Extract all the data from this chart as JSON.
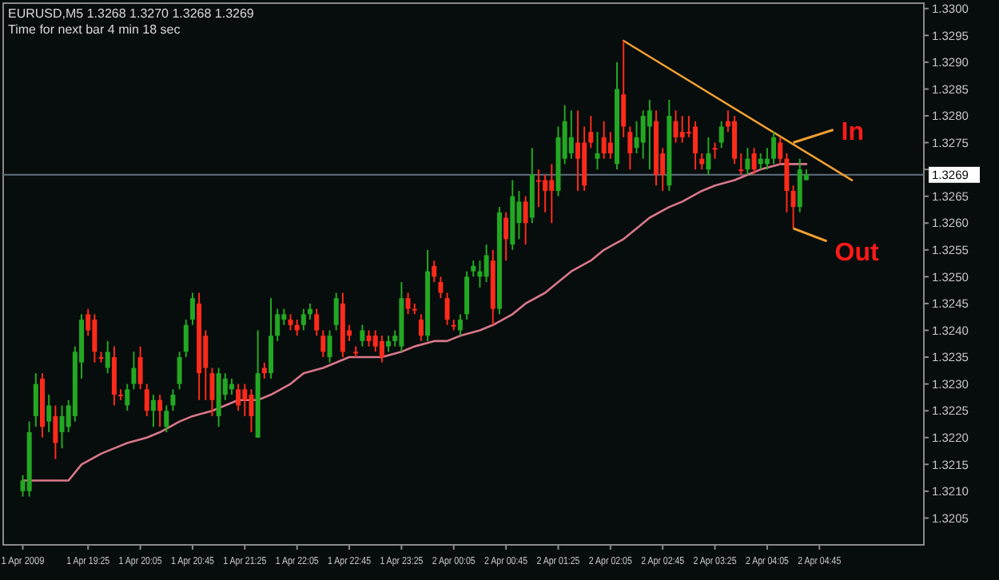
{
  "chart_data": {
    "type": "candlestick",
    "title": "EURUSD,M5  1.3268 1.3270 1.3268 1.3269",
    "subtitle": "Time for next bar 4 min 18 sec",
    "x": [
      "2009-04-01T18:35",
      "2009-04-01T18:40",
      "2009-04-01T18:45",
      "2009-04-01T18:50",
      "2009-04-01T18:55",
      "2009-04-01T19:00",
      "2009-04-01T19:05",
      "2009-04-01T19:10",
      "2009-04-01T19:15",
      "2009-04-01T19:20",
      "2009-04-01T19:25",
      "2009-04-01T19:30",
      "2009-04-01T19:35",
      "2009-04-01T19:40",
      "2009-04-01T19:45",
      "2009-04-01T19:50",
      "2009-04-01T19:55",
      "2009-04-01T20:00",
      "2009-04-01T20:05",
      "2009-04-01T20:10",
      "2009-04-01T20:15",
      "2009-04-01T20:20",
      "2009-04-01T20:25",
      "2009-04-01T20:30",
      "2009-04-01T20:35",
      "2009-04-01T20:40",
      "2009-04-01T20:45",
      "2009-04-01T20:50",
      "2009-04-01T20:55",
      "2009-04-01T21:00",
      "2009-04-01T21:05",
      "2009-04-01T21:10",
      "2009-04-01T21:15",
      "2009-04-01T21:20",
      "2009-04-01T21:25",
      "2009-04-01T21:30",
      "2009-04-01T21:35",
      "2009-04-01T21:40",
      "2009-04-01T21:45",
      "2009-04-01T21:50",
      "2009-04-01T21:55",
      "2009-04-01T22:00",
      "2009-04-01T22:05",
      "2009-04-01T22:10",
      "2009-04-01T22:15",
      "2009-04-01T22:20",
      "2009-04-01T22:25",
      "2009-04-01T22:30",
      "2009-04-01T22:35",
      "2009-04-01T22:40",
      "2009-04-01T22:45",
      "2009-04-01T22:50",
      "2009-04-01T22:55",
      "2009-04-01T23:00",
      "2009-04-01T23:05",
      "2009-04-01T23:10",
      "2009-04-01T23:15",
      "2009-04-01T23:20",
      "2009-04-01T23:25",
      "2009-04-01T23:30",
      "2009-04-01T23:35",
      "2009-04-01T23:40",
      "2009-04-01T23:45",
      "2009-04-01T23:50",
      "2009-04-01T23:55",
      "2009-04-02T00:00",
      "2009-04-02T00:05",
      "2009-04-02T00:10",
      "2009-04-02T00:15",
      "2009-04-02T00:20",
      "2009-04-02T00:25",
      "2009-04-02T00:30",
      "2009-04-02T00:35",
      "2009-04-02T00:40",
      "2009-04-02T00:45",
      "2009-04-02T00:50",
      "2009-04-02T00:55",
      "2009-04-02T01:00",
      "2009-04-02T01:05",
      "2009-04-02T01:10",
      "2009-04-02T01:15",
      "2009-04-02T01:20",
      "2009-04-02T01:25",
      "2009-04-02T01:30",
      "2009-04-02T01:35",
      "2009-04-02T01:40",
      "2009-04-02T01:45",
      "2009-04-02T01:50",
      "2009-04-02T01:55",
      "2009-04-02T02:00",
      "2009-04-02T02:05",
      "2009-04-02T02:10",
      "2009-04-02T02:15",
      "2009-04-02T02:20",
      "2009-04-02T02:25",
      "2009-04-02T02:30",
      "2009-04-02T02:35",
      "2009-04-02T02:40",
      "2009-04-02T02:45",
      "2009-04-02T02:50",
      "2009-04-02T02:55",
      "2009-04-02T03:00",
      "2009-04-02T03:05",
      "2009-04-02T03:10",
      "2009-04-02T03:15",
      "2009-04-02T03:20",
      "2009-04-02T03:25",
      "2009-04-02T03:30",
      "2009-04-02T03:35",
      "2009-04-02T03:40",
      "2009-04-02T03:45",
      "2009-04-02T03:50",
      "2009-04-02T03:55",
      "2009-04-02T04:00",
      "2009-04-02T04:05",
      "2009-04-02T04:10",
      "2009-04-02T04:15",
      "2009-04-02T04:20",
      "2009-04-02T04:25",
      "2009-04-02T04:30",
      "2009-04-02T04:35"
    ],
    "ohlc": [
      [
        1.321,
        1.3213,
        1.3209,
        1.3212
      ],
      [
        1.321,
        1.3223,
        1.3209,
        1.3221
      ],
      [
        1.3224,
        1.3232,
        1.3222,
        1.323
      ],
      [
        1.3231,
        1.3232,
        1.322,
        1.3222
      ],
      [
        1.3223,
        1.3228,
        1.3221,
        1.3226
      ],
      [
        1.3224,
        1.3226,
        1.3216,
        1.3219
      ],
      [
        1.3221,
        1.3226,
        1.3218,
        1.3224
      ],
      [
        1.3222,
        1.3227,
        1.3221,
        1.3226
      ],
      [
        1.3224,
        1.3237,
        1.3223,
        1.3236
      ],
      [
        1.3234,
        1.3243,
        1.3231,
        1.3242
      ],
      [
        1.3243,
        1.3244,
        1.3239,
        1.324
      ],
      [
        1.3242,
        1.3243,
        1.3234,
        1.3236
      ],
      [
        1.3235,
        1.3236,
        1.3234,
        1.3235
      ],
      [
        1.3233,
        1.3238,
        1.3232,
        1.3236
      ],
      [
        1.3235,
        1.3237,
        1.3226,
        1.3228
      ],
      [
        1.3228,
        1.3229,
        1.3227,
        1.3228
      ],
      [
        1.3226,
        1.323,
        1.3225,
        1.3229
      ],
      [
        1.323,
        1.3236,
        1.3229,
        1.3233
      ],
      [
        1.3235,
        1.3237,
        1.3229,
        1.323
      ],
      [
        1.3229,
        1.323,
        1.3224,
        1.3225
      ],
      [
        1.3225,
        1.3228,
        1.3222,
        1.3227
      ],
      [
        1.3227,
        1.3228,
        1.3222,
        1.3225
      ],
      [
        1.3222,
        1.3226,
        1.3221,
        1.3225
      ],
      [
        1.3226,
        1.3229,
        1.3225,
        1.3228
      ],
      [
        1.323,
        1.3236,
        1.3229,
        1.3235
      ],
      [
        1.3236,
        1.3242,
        1.3235,
        1.3241
      ],
      [
        1.3242,
        1.3247,
        1.3241,
        1.3246
      ],
      [
        1.3245,
        1.3247,
        1.3227,
        1.3232
      ],
      [
        1.3239,
        1.324,
        1.3227,
        1.3233
      ],
      [
        1.3232,
        1.3233,
        1.3224,
        1.3227
      ],
      [
        1.3224,
        1.3233,
        1.3222,
        1.3232
      ],
      [
        1.3228,
        1.3232,
        1.3227,
        1.3231
      ],
      [
        1.3229,
        1.3231,
        1.3228,
        1.323
      ],
      [
        1.3229,
        1.323,
        1.3225,
        1.3226
      ],
      [
        1.3229,
        1.323,
        1.3224,
        1.3227
      ],
      [
        1.3228,
        1.3229,
        1.3221,
        1.3224
      ],
      [
        1.322,
        1.324,
        1.322,
        1.3232
      ],
      [
        1.3233,
        1.3234,
        1.3231,
        1.3232
      ],
      [
        1.3232,
        1.3246,
        1.3231,
        1.3239
      ],
      [
        1.3239,
        1.3244,
        1.3238,
        1.3243
      ],
      [
        1.3242,
        1.3244,
        1.3241,
        1.3243
      ],
      [
        1.3242,
        1.3243,
        1.324,
        1.3241
      ],
      [
        1.3241,
        1.3242,
        1.3239,
        1.324
      ],
      [
        1.3241,
        1.3244,
        1.324,
        1.3243
      ],
      [
        1.3243,
        1.3245,
        1.3242,
        1.3244
      ],
      [
        1.3243,
        1.3244,
        1.3239,
        1.324
      ],
      [
        1.3239,
        1.324,
        1.3235,
        1.3236
      ],
      [
        1.3235,
        1.324,
        1.3234,
        1.3239
      ],
      [
        1.3241,
        1.3247,
        1.324,
        1.3246
      ],
      [
        1.3245,
        1.3247,
        1.3235,
        1.3236
      ],
      [
        1.324,
        1.3241,
        1.3238,
        1.3239
      ],
      [
        1.3236,
        1.3237,
        1.3235,
        1.3236
      ],
      [
        1.3238,
        1.3241,
        1.3237,
        1.324
      ],
      [
        1.3239,
        1.324,
        1.3237,
        1.3238
      ],
      [
        1.3239,
        1.324,
        1.3236,
        1.3237
      ],
      [
        1.3238,
        1.3239,
        1.3234,
        1.3235
      ],
      [
        1.3237,
        1.3239,
        1.3236,
        1.3238
      ],
      [
        1.3238,
        1.324,
        1.3237,
        1.3239
      ],
      [
        1.3237,
        1.3249,
        1.3236,
        1.3246
      ],
      [
        1.3246,
        1.3247,
        1.3243,
        1.3244
      ],
      [
        1.3244,
        1.3245,
        1.3243,
        1.3244
      ],
      [
        1.3242,
        1.3243,
        1.3238,
        1.3239
      ],
      [
        1.3239,
        1.3255,
        1.3238,
        1.3251
      ],
      [
        1.3252,
        1.3253,
        1.3249,
        1.325
      ],
      [
        1.3249,
        1.325,
        1.3246,
        1.3247
      ],
      [
        1.3246,
        1.3247,
        1.3241,
        1.3242
      ],
      [
        1.3241,
        1.3242,
        1.324,
        1.3241
      ],
      [
        1.324,
        1.3243,
        1.3239,
        1.3242
      ],
      [
        1.3243,
        1.3251,
        1.3242,
        1.325
      ],
      [
        1.3251,
        1.3253,
        1.325,
        1.3252
      ],
      [
        1.325,
        1.3253,
        1.3248,
        1.3251
      ],
      [
        1.325,
        1.3256,
        1.3249,
        1.3254
      ],
      [
        1.3253,
        1.3255,
        1.3241,
        1.3244
      ],
      [
        1.3244,
        1.3263,
        1.3243,
        1.3262
      ],
      [
        1.3261,
        1.3262,
        1.3253,
        1.3257
      ],
      [
        1.3256,
        1.3268,
        1.3255,
        1.3265
      ],
      [
        1.326,
        1.3266,
        1.3257,
        1.3264
      ],
      [
        1.3264,
        1.3265,
        1.3256,
        1.326
      ],
      [
        1.3261,
        1.3274,
        1.326,
        1.3269
      ],
      [
        1.3268,
        1.327,
        1.3263,
        1.3268
      ],
      [
        1.3268,
        1.3269,
        1.3262,
        1.3266
      ],
      [
        1.3268,
        1.3271,
        1.326,
        1.3266
      ],
      [
        1.3266,
        1.3278,
        1.3265,
        1.3276
      ],
      [
        1.3272,
        1.3282,
        1.3271,
        1.3279
      ],
      [
        1.3273,
        1.3281,
        1.3272,
        1.3276
      ],
      [
        1.3275,
        1.3281,
        1.3266,
        1.3272
      ],
      [
        1.3275,
        1.3278,
        1.3266,
        1.3267
      ],
      [
        1.3277,
        1.328,
        1.3274,
        1.3275
      ],
      [
        1.3272,
        1.3277,
        1.327,
        1.3273
      ],
      [
        1.3276,
        1.3279,
        1.3272,
        1.3273
      ],
      [
        1.3275,
        1.3277,
        1.3272,
        1.3273
      ],
      [
        1.3271,
        1.329,
        1.327,
        1.3285
      ],
      [
        1.3284,
        1.3294,
        1.3276,
        1.3278
      ],
      [
        1.3277,
        1.3278,
        1.327,
        1.3273
      ],
      [
        1.3274,
        1.3279,
        1.3273,
        1.3276
      ],
      [
        1.3275,
        1.3281,
        1.3272,
        1.328
      ],
      [
        1.3278,
        1.3283,
        1.327,
        1.3281
      ],
      [
        1.3279,
        1.3281,
        1.3267,
        1.3269
      ],
      [
        1.3273,
        1.3274,
        1.3266,
        1.3269
      ],
      [
        1.3267,
        1.3283,
        1.3266,
        1.328
      ],
      [
        1.3279,
        1.3281,
        1.3275,
        1.3276
      ],
      [
        1.3277,
        1.328,
        1.3275,
        1.3276
      ],
      [
        1.3277,
        1.328,
        1.3276,
        1.3277
      ],
      [
        1.3278,
        1.3279,
        1.327,
        1.3273
      ],
      [
        1.3272,
        1.3273,
        1.327,
        1.3271
      ],
      [
        1.327,
        1.3276,
        1.3269,
        1.3273
      ],
      [
        1.3274,
        1.3275,
        1.3272,
        1.3274
      ],
      [
        1.3275,
        1.3279,
        1.3274,
        1.3278
      ],
      [
        1.3279,
        1.3281,
        1.3277,
        1.3278
      ],
      [
        1.3279,
        1.328,
        1.3271,
        1.3272
      ],
      [
        1.327,
        1.3273,
        1.3269,
        1.327
      ],
      [
        1.327,
        1.3274,
        1.3269,
        1.3272
      ],
      [
        1.3273,
        1.3274,
        1.3269,
        1.327
      ],
      [
        1.3271,
        1.3273,
        1.327,
        1.3272
      ],
      [
        1.3271,
        1.3274,
        1.327,
        1.3272
      ],
      [
        1.3272,
        1.3277,
        1.3271,
        1.3276
      ],
      [
        1.3275,
        1.3276,
        1.3271,
        1.3272
      ],
      [
        1.3272,
        1.3273,
        1.3262,
        1.3266
      ],
      [
        1.3266,
        1.3267,
        1.3259,
        1.3263
      ],
      [
        1.3263,
        1.3272,
        1.3262,
        1.327
      ],
      [
        1.3268,
        1.327,
        1.3268,
        1.3269
      ]
    ],
    "colors": [
      "#22a822",
      "#22a822",
      "#22a822",
      "#ff2a1a",
      "#22a822",
      "#ff2a1a",
      "#22a822",
      "#22a822",
      "#22a822",
      "#22a822",
      "#ff2a1a",
      "#ff2a1a",
      "#ff2a1a",
      "#22a822",
      "#ff2a1a",
      "#ff2a1a",
      "#22a822",
      "#22a822",
      "#ff2a1a",
      "#ff2a1a",
      "#22a822",
      "#ff2a1a",
      "#22a822",
      "#22a822",
      "#22a822",
      "#22a822",
      "#22a822",
      "#ff2a1a",
      "#ff2a1a",
      "#ff2a1a",
      "#22a822",
      "#22a822",
      "#22a822",
      "#ff2a1a",
      "#ff2a1a",
      "#ff2a1a",
      "#22a822",
      "#ff2a1a",
      "#22a822",
      "#22a822",
      "#22a822",
      "#ff2a1a",
      "#ff2a1a",
      "#22a822",
      "#22a822",
      "#ff2a1a",
      "#ff2a1a",
      "#22a822",
      "#22a822",
      "#ff2a1a",
      "#ff2a1a",
      "#ff2a1a",
      "#22a822",
      "#ff2a1a",
      "#ff2a1a",
      "#ff2a1a",
      "#22a822",
      "#22a822",
      "#22a822",
      "#ff2a1a",
      "#ff2a1a",
      "#ff2a1a",
      "#22a822",
      "#ff2a1a",
      "#ff2a1a",
      "#ff2a1a",
      "#ff2a1a",
      "#22a822",
      "#22a822",
      "#22a822",
      "#22a822",
      "#22a822",
      "#ff2a1a",
      "#22a822",
      "#ff2a1a",
      "#22a822",
      "#22a822",
      "#ff2a1a",
      "#22a822",
      "#ff2a1a",
      "#ff2a1a",
      "#ff2a1a",
      "#22a822",
      "#22a822",
      "#22a822",
      "#ff2a1a",
      "#ff2a1a",
      "#ff2a1a",
      "#22a822",
      "#ff2a1a",
      "#ff2a1a",
      "#22a822",
      "#ff2a1a",
      "#ff2a1a",
      "#22a822",
      "#22a822",
      "#22a822",
      "#ff2a1a",
      "#ff2a1a",
      "#22a822",
      "#ff2a1a",
      "#ff2a1a",
      "#ff2a1a",
      "#ff2a1a",
      "#ff2a1a",
      "#22a822",
      "#ff2a1a",
      "#22a822",
      "#ff2a1a",
      "#ff2a1a",
      "#ff2a1a",
      "#22a822",
      "#ff2a1a",
      "#22a822",
      "#22a822",
      "#22a822",
      "#ff2a1a",
      "#ff2a1a",
      "#ff2a1a",
      "#22a822",
      "#22a822"
    ],
    "series": [
      {
        "type": "line",
        "color": "#d9788a",
        "x": [
          "2009-04-01T18:35",
          "2009-04-01T19:10",
          "2009-04-01T19:20",
          "2009-04-01T19:35",
          "2009-04-01T19:45",
          "2009-04-01T19:55",
          "2009-04-01T20:10",
          "2009-04-01T20:20",
          "2009-04-01T20:35",
          "2009-04-01T20:45",
          "2009-04-01T21:00",
          "2009-04-01T21:10",
          "2009-04-01T21:20",
          "2009-04-01T21:35",
          "2009-04-01T21:45",
          "2009-04-01T22:00",
          "2009-04-01T22:10",
          "2009-04-01T22:25",
          "2009-04-01T22:35",
          "2009-04-01T22:45",
          "2009-04-01T23:00",
          "2009-04-01T23:10",
          "2009-04-01T23:25",
          "2009-04-01T23:35",
          "2009-04-01T23:50",
          "2009-04-02T00:00",
          "2009-04-02T00:10",
          "2009-04-02T00:25",
          "2009-04-02T00:35",
          "2009-04-02T00:50",
          "2009-04-02T01:00",
          "2009-04-02T01:15",
          "2009-04-02T01:25",
          "2009-04-02T01:35",
          "2009-04-02T01:50",
          "2009-04-02T02:00",
          "2009-04-02T02:15",
          "2009-04-02T02:25",
          "2009-04-02T02:35",
          "2009-04-02T02:50",
          "2009-04-02T03:00",
          "2009-04-02T03:15",
          "2009-04-02T03:25",
          "2009-04-02T03:40",
          "2009-04-02T03:50",
          "2009-04-02T04:00",
          "2009-04-02T04:15",
          "2009-04-02T04:35"
        ],
        "values": [
          1.3212,
          1.3212,
          1.3215,
          1.3217,
          1.3218,
          1.3219,
          1.322,
          1.3221,
          1.3223,
          1.3224,
          1.3225,
          1.3226,
          1.3227,
          1.3227,
          1.3228,
          1.323,
          1.3232,
          1.3233,
          1.3234,
          1.3235,
          1.3235,
          1.3235,
          1.3236,
          1.3237,
          1.3238,
          1.3238,
          1.3239,
          1.324,
          1.3241,
          1.3243,
          1.3245,
          1.3247,
          1.3249,
          1.3251,
          1.3253,
          1.3255,
          1.3257,
          1.3259,
          1.3261,
          1.3263,
          1.3264,
          1.3266,
          1.3267,
          1.3268,
          1.3269,
          1.327,
          1.3271,
          1.3271
        ]
      },
      {
        "type": "line",
        "color": "#f0a030",
        "x": [
          "2009-04-02T02:15",
          "2009-04-02T05:10"
        ],
        "values": [
          1.3294,
          1.3268
        ]
      }
    ],
    "ref_lines": [
      {
        "axis": "y",
        "value": 1.3269,
        "label": "1.3269",
        "color": "#5f7080"
      }
    ],
    "annotations": [
      {
        "text": "In",
        "x": "2009-04-02T04:25",
        "y": 1.3275
      },
      {
        "text": "Out",
        "x": "2009-04-02T04:25",
        "y": 1.3259
      }
    ],
    "xlim": [
      "2009-04-01T18:20",
      "2009-04-02T06:05"
    ],
    "xticks": [
      {
        "value": "2009-04-01T18:35",
        "label": "1 Apr 2009"
      },
      {
        "value": "2009-04-01T19:25",
        "label": "1 Apr 19:25"
      },
      {
        "value": "2009-04-01T20:05",
        "label": "1 Apr 20:05"
      },
      {
        "value": "2009-04-01T20:45",
        "label": "1 Apr 20:45"
      },
      {
        "value": "2009-04-01T21:25",
        "label": "1 Apr 21:25"
      },
      {
        "value": "2009-04-01T22:05",
        "label": "1 Apr 22:05"
      },
      {
        "value": "2009-04-01T22:45",
        "label": "1 Apr 22:45"
      },
      {
        "value": "2009-04-01T23:25",
        "label": "1 Apr 23:25"
      },
      {
        "value": "2009-04-02T00:05",
        "label": "2 Apr 00:05"
      },
      {
        "value": "2009-04-02T00:45",
        "label": "2 Apr 00:45"
      },
      {
        "value": "2009-04-02T01:25",
        "label": "2 Apr 01:25"
      },
      {
        "value": "2009-04-02T02:05",
        "label": "2 Apr 02:05"
      },
      {
        "value": "2009-04-02T02:45",
        "label": "2 Apr 02:45"
      },
      {
        "value": "2009-04-02T03:25",
        "label": "2 Apr 03:25"
      },
      {
        "value": "2009-04-02T04:05",
        "label": "2 Apr 04:05"
      },
      {
        "value": "2009-04-02T04:45",
        "label": "2 Apr 04:45"
      }
    ],
    "ylim": [
      1.32,
      1.3301
    ],
    "yticks": [
      {
        "value": 1.3205,
        "label": "1.3205"
      },
      {
        "value": 1.321,
        "label": "1.3210"
      },
      {
        "value": 1.3215,
        "label": "1.3215"
      },
      {
        "value": 1.322,
        "label": "1.3220"
      },
      {
        "value": 1.3225,
        "label": "1.3225"
      },
      {
        "value": 1.323,
        "label": "1.3230"
      },
      {
        "value": 1.3235,
        "label": "1.3235"
      },
      {
        "value": 1.324,
        "label": "1.3240"
      },
      {
        "value": 1.3245,
        "label": "1.3245"
      },
      {
        "value": 1.325,
        "label": "1.3250"
      },
      {
        "value": 1.3255,
        "label": "1.3255"
      },
      {
        "value": 1.326,
        "label": "1.3260"
      },
      {
        "value": 1.3265,
        "label": "1.3265"
      },
      {
        "value": 1.327,
        "label": null
      },
      {
        "value": 1.3275,
        "label": "1.3275"
      },
      {
        "value": 1.328,
        "label": "1.3280"
      },
      {
        "value": 1.3285,
        "label": "1.3285"
      },
      {
        "value": 1.329,
        "label": "1.3290"
      },
      {
        "value": 1.3295,
        "label": "1.3295"
      },
      {
        "value": 1.33,
        "label": "1.3300"
      }
    ]
  }
}
